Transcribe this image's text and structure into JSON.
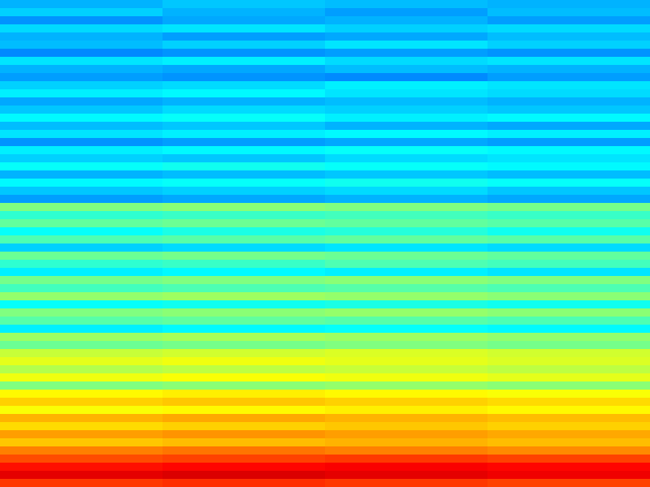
{
  "chart_data": {
    "type": "heatmap",
    "zlim": [
      0,
      1
    ],
    "tick_labels": false,
    "cells": [
      [
        0.3,
        0.32,
        0.31,
        0.3
      ],
      [
        0.33,
        0.3,
        0.28,
        0.31
      ],
      [
        0.27,
        0.29,
        0.3,
        0.28
      ],
      [
        0.34,
        0.35,
        0.33,
        0.34
      ],
      [
        0.3,
        0.28,
        0.29,
        0.31
      ],
      [
        0.31,
        0.33,
        0.35,
        0.33
      ],
      [
        0.26,
        0.27,
        0.28,
        0.27
      ],
      [
        0.35,
        0.36,
        0.34,
        0.35
      ],
      [
        0.3,
        0.29,
        0.31,
        0.3
      ],
      [
        0.28,
        0.27,
        0.26,
        0.28
      ],
      [
        0.33,
        0.34,
        0.36,
        0.35
      ],
      [
        0.36,
        0.37,
        0.35,
        0.34
      ],
      [
        0.29,
        0.3,
        0.31,
        0.3
      ],
      [
        0.32,
        0.34,
        0.33,
        0.32
      ],
      [
        0.37,
        0.38,
        0.36,
        0.37
      ],
      [
        0.31,
        0.32,
        0.3,
        0.29
      ],
      [
        0.35,
        0.36,
        0.37,
        0.36
      ],
      [
        0.27,
        0.28,
        0.29,
        0.28
      ],
      [
        0.36,
        0.37,
        0.38,
        0.37
      ],
      [
        0.33,
        0.32,
        0.34,
        0.35
      ],
      [
        0.38,
        0.39,
        0.38,
        0.37
      ],
      [
        0.3,
        0.31,
        0.32,
        0.31
      ],
      [
        0.37,
        0.38,
        0.39,
        0.38
      ],
      [
        0.32,
        0.33,
        0.34,
        0.32
      ],
      [
        0.28,
        0.29,
        0.3,
        0.29
      ],
      [
        0.5,
        0.51,
        0.5,
        0.49
      ],
      [
        0.42,
        0.43,
        0.44,
        0.43
      ],
      [
        0.47,
        0.48,
        0.47,
        0.46
      ],
      [
        0.38,
        0.4,
        0.41,
        0.39
      ],
      [
        0.45,
        0.46,
        0.47,
        0.46
      ],
      [
        0.33,
        0.34,
        0.35,
        0.34
      ],
      [
        0.48,
        0.49,
        0.48,
        0.47
      ],
      [
        0.42,
        0.43,
        0.45,
        0.44
      ],
      [
        0.36,
        0.37,
        0.36,
        0.35
      ],
      [
        0.49,
        0.5,
        0.51,
        0.5
      ],
      [
        0.44,
        0.45,
        0.46,
        0.45
      ],
      [
        0.52,
        0.53,
        0.52,
        0.51
      ],
      [
        0.38,
        0.39,
        0.4,
        0.39
      ],
      [
        0.5,
        0.51,
        0.52,
        0.51
      ],
      [
        0.46,
        0.47,
        0.46,
        0.45
      ],
      [
        0.36,
        0.37,
        0.38,
        0.37
      ],
      [
        0.53,
        0.54,
        0.53,
        0.52
      ],
      [
        0.48,
        0.49,
        0.5,
        0.49
      ],
      [
        0.57,
        0.58,
        0.59,
        0.58
      ],
      [
        0.6,
        0.61,
        0.6,
        0.59
      ],
      [
        0.55,
        0.56,
        0.57,
        0.56
      ],
      [
        0.61,
        0.62,
        0.61,
        0.6
      ],
      [
        0.5,
        0.51,
        0.52,
        0.51
      ],
      [
        0.63,
        0.64,
        0.63,
        0.62
      ],
      [
        0.67,
        0.68,
        0.67,
        0.66
      ],
      [
        0.62,
        0.63,
        0.64,
        0.63
      ],
      [
        0.7,
        0.71,
        0.7,
        0.69
      ],
      [
        0.66,
        0.67,
        0.68,
        0.67
      ],
      [
        0.72,
        0.73,
        0.72,
        0.71
      ],
      [
        0.68,
        0.69,
        0.7,
        0.69
      ],
      [
        0.75,
        0.76,
        0.75,
        0.74
      ],
      [
        0.8,
        0.81,
        0.82,
        0.81
      ],
      [
        0.86,
        0.87,
        0.88,
        0.87
      ],
      [
        0.9,
        0.91,
        0.9,
        0.89
      ],
      [
        0.82,
        0.83,
        0.82,
        0.81
      ]
    ]
  }
}
